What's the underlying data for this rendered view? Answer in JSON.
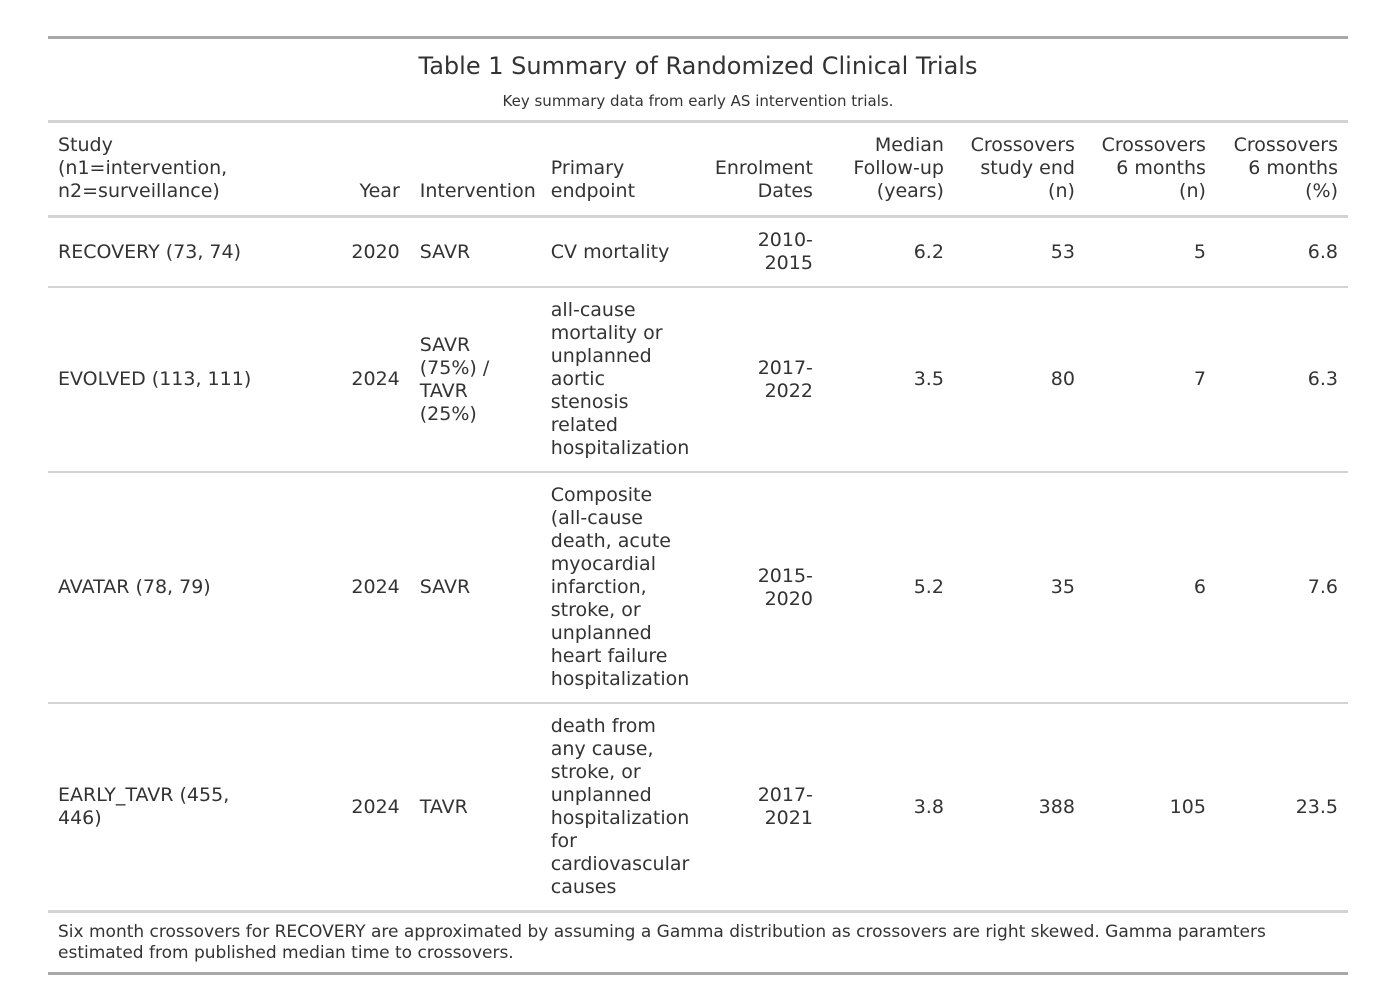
{
  "table": {
    "title": "Table 1 Summary of Randomized Clinical Trials",
    "subtitle": "Key summary data from early AS intervention trials.",
    "columns": [
      {
        "label": "Study\n(n1=intervention,\nn2=surveillance)",
        "align": "left"
      },
      {
        "label": "Year",
        "align": "right"
      },
      {
        "label": "Intervention",
        "align": "left"
      },
      {
        "label": "Primary\nendpoint",
        "align": "left"
      },
      {
        "label": "Enrolment\nDates",
        "align": "right"
      },
      {
        "label": "Median\nFollow-up\n(years)",
        "align": "right"
      },
      {
        "label": "Crossovers\nstudy end\n(n)",
        "align": "right"
      },
      {
        "label": "Crossovers\n6 months\n(n)",
        "align": "right"
      },
      {
        "label": "Crossovers\n6 months\n(%)",
        "align": "right"
      }
    ],
    "rows": [
      [
        "RECOVERY (73, 74)",
        "2020",
        "SAVR",
        "CV mortality",
        "2010-\n2015",
        "6.2",
        "53",
        "5",
        "6.8"
      ],
      [
        "EVOLVED (113, 111)",
        "2024",
        "SAVR\n(75%) /\nTAVR\n(25%)",
        "all-cause\nmortality or\nunplanned\naortic\nstenosis\nrelated\nhospitalization",
        "2017-\n2022",
        "3.5",
        "80",
        "7",
        "6.3"
      ],
      [
        "AVATAR (78, 79)",
        "2024",
        "SAVR",
        "Composite\n(all-cause\ndeath, acute\nmyocardial\ninfarction,\nstroke, or\nunplanned\nheart failure\nhospitalization",
        "2015-\n2020",
        "5.2",
        "35",
        "6",
        "7.6"
      ],
      [
        "EARLY_TAVR (455,\n446)",
        "2024",
        "TAVR",
        "death from\nany cause,\nstroke, or\nunplanned\nhospitalization\nfor\ncardiovascular\ncauses",
        "2017-\n2021",
        "3.8",
        "388",
        "105",
        "23.5"
      ]
    ],
    "footnote": "Six month crossovers for RECOVERY are approximated by assuming a Gamma distribution as crossovers are right skewed. Gamma paramters estimated from published median time to crossovers."
  }
}
